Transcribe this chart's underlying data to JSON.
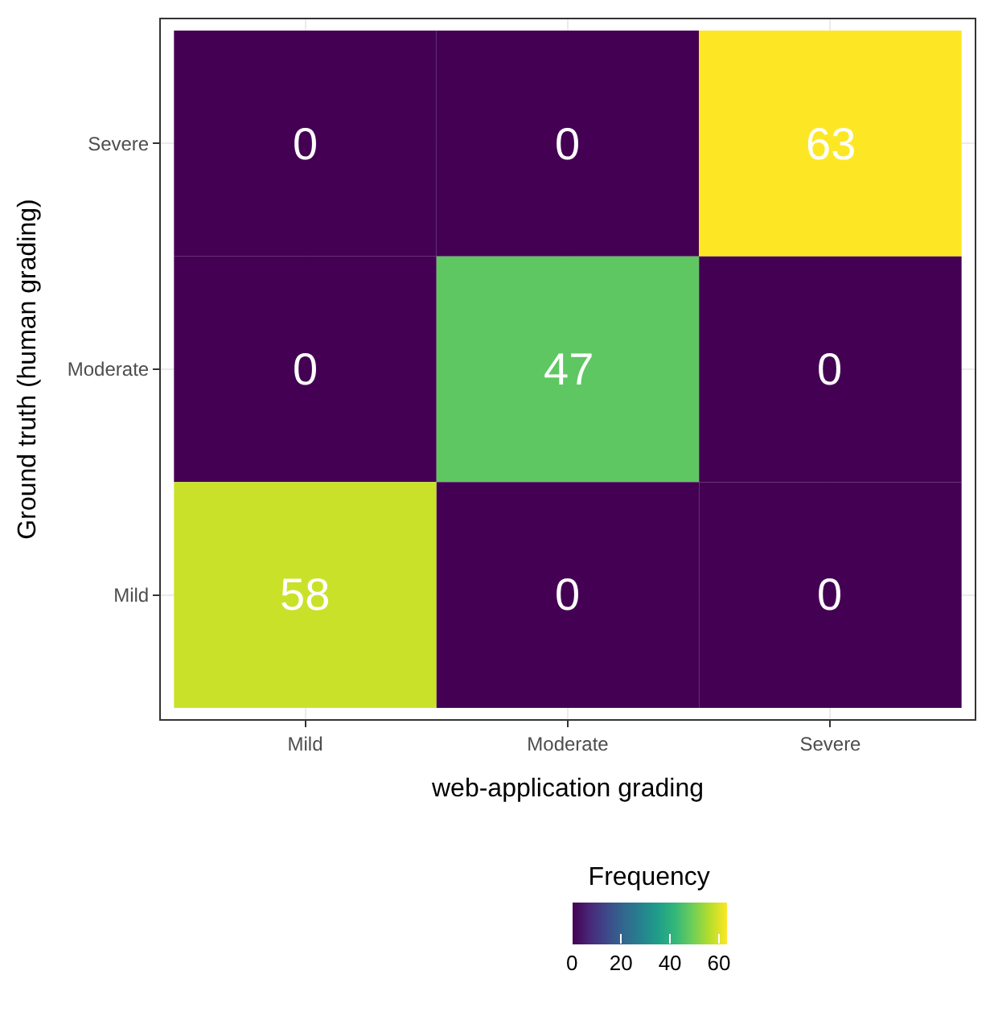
{
  "chart_data": {
    "type": "heatmap",
    "xlabel": "web-application grading",
    "ylabel": "Ground truth (human grading)",
    "clabel": "Frequency",
    "categories": [
      "Mild",
      "Moderate",
      "Severe"
    ],
    "y_categories": [
      "Severe",
      "Moderate",
      "Mild"
    ],
    "cells": [
      [
        0,
        0,
        63
      ],
      [
        0,
        47,
        0
      ],
      [
        58,
        0,
        0
      ]
    ],
    "clim": [
      0,
      63
    ],
    "cticks": [
      0,
      20,
      40,
      60
    ],
    "grid": true,
    "data_labels": true
  }
}
